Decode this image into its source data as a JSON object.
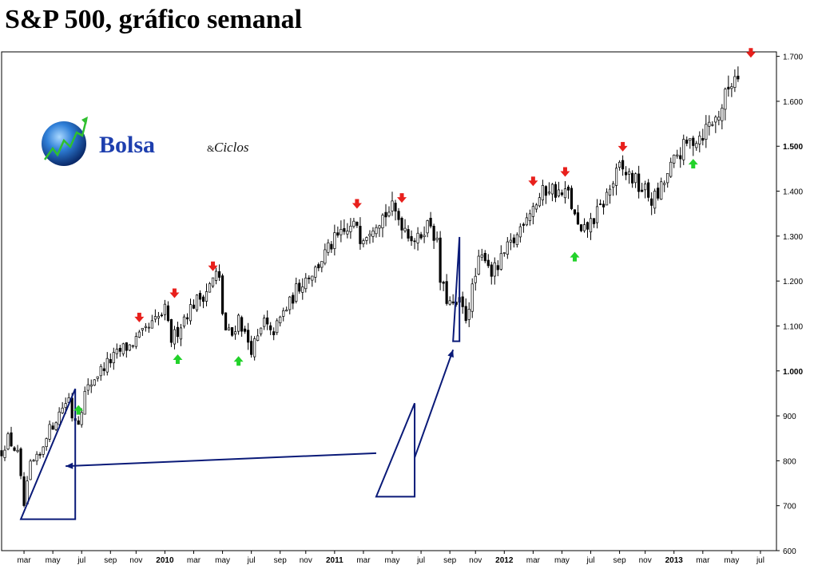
{
  "title": "S&P 500, gráfico semanal",
  "logo": {
    "word1": "Bolsa",
    "amp": "&",
    "word2": "Ciclos"
  },
  "colors": {
    "up_candle": "#ffffff",
    "down_candle": "#000000",
    "wick": "#000000",
    "arrow_down": "#e8201c",
    "arrow_up": "#22d22a",
    "annotation": "#0a1a78"
  },
  "chart_data": {
    "type": "candlestick",
    "timeframe": "weekly",
    "ylim": [
      600,
      1710
    ],
    "y_ticks": [
      {
        "value": 1700,
        "label": "1.700",
        "bold": false
      },
      {
        "value": 1600,
        "label": "1.600",
        "bold": false
      },
      {
        "value": 1500,
        "label": "1.500",
        "bold": true
      },
      {
        "value": 1400,
        "label": "1.400",
        "bold": false
      },
      {
        "value": 1300,
        "label": "1.300",
        "bold": false
      },
      {
        "value": 1200,
        "label": "1.200",
        "bold": false
      },
      {
        "value": 1100,
        "label": "1.100",
        "bold": false
      },
      {
        "value": 1000,
        "label": "1.000",
        "bold": true
      },
      {
        "value": 900,
        "label": "900",
        "bold": false
      },
      {
        "value": 800,
        "label": "800",
        "bold": false
      },
      {
        "value": 700,
        "label": "700",
        "bold": false
      },
      {
        "value": 600,
        "label": "600",
        "bold": false
      }
    ],
    "x_ticks": [
      {
        "week": 2,
        "label": "mar",
        "bold": false
      },
      {
        "week": 11,
        "label": "may",
        "bold": false
      },
      {
        "week": 20,
        "label": "jul",
        "bold": false
      },
      {
        "week": 29,
        "label": "sep",
        "bold": false
      },
      {
        "week": 37,
        "label": "nov",
        "bold": false
      },
      {
        "week": 46,
        "label": "2010",
        "bold": true
      },
      {
        "week": 55,
        "label": "mar",
        "bold": false
      },
      {
        "week": 64,
        "label": "may",
        "bold": false
      },
      {
        "week": 73,
        "label": "jul",
        "bold": false
      },
      {
        "week": 82,
        "label": "sep",
        "bold": false
      },
      {
        "week": 90,
        "label": "nov",
        "bold": false
      },
      {
        "week": 99,
        "label": "2011",
        "bold": true
      },
      {
        "week": 108,
        "label": "mar",
        "bold": false
      },
      {
        "week": 117,
        "label": "may",
        "bold": false
      },
      {
        "week": 126,
        "label": "jul",
        "bold": false
      },
      {
        "week": 135,
        "label": "sep",
        "bold": false
      },
      {
        "week": 143,
        "label": "nov",
        "bold": false
      },
      {
        "week": 152,
        "label": "2012",
        "bold": true
      },
      {
        "week": 161,
        "label": "mar",
        "bold": false
      },
      {
        "week": 170,
        "label": "may",
        "bold": false
      },
      {
        "week": 179,
        "label": "jul",
        "bold": false
      },
      {
        "week": 188,
        "label": "sep",
        "bold": false
      },
      {
        "week": 196,
        "label": "nov",
        "bold": false
      },
      {
        "week": 205,
        "label": "2013",
        "bold": true
      },
      {
        "week": 214,
        "label": "mar",
        "bold": false
      },
      {
        "week": 223,
        "label": "may",
        "bold": false
      },
      {
        "week": 232,
        "label": "jul",
        "bold": false
      }
    ],
    "week_range": [
      -5,
      237
    ],
    "path_anchors": [
      [
        -5,
        820
      ],
      [
        -3,
        850
      ],
      [
        0,
        815
      ],
      [
        2,
        700
      ],
      [
        4,
        790
      ],
      [
        7,
        810
      ],
      [
        9,
        860
      ],
      [
        11,
        880
      ],
      [
        14,
        920
      ],
      [
        16,
        940
      ],
      [
        17,
        900
      ],
      [
        19,
        890
      ],
      [
        21,
        950
      ],
      [
        24,
        985
      ],
      [
        27,
        1010
      ],
      [
        30,
        1030
      ],
      [
        33,
        1050
      ],
      [
        35,
        1055
      ],
      [
        37,
        1070
      ],
      [
        39,
        1080
      ],
      [
        41,
        1095
      ],
      [
        43,
        1110
      ],
      [
        45,
        1125
      ],
      [
        46,
        1135
      ],
      [
        47,
        1100
      ],
      [
        48,
        1070
      ],
      [
        50,
        1090
      ],
      [
        52,
        1120
      ],
      [
        55,
        1150
      ],
      [
        58,
        1170
      ],
      [
        60,
        1190
      ],
      [
        62,
        1215
      ],
      [
        63,
        1200
      ],
      [
        64,
        1130
      ],
      [
        65,
        1090
      ],
      [
        67,
        1080
      ],
      [
        69,
        1120
      ],
      [
        71,
        1080
      ],
      [
        73,
        1050
      ],
      [
        75,
        1070
      ],
      [
        77,
        1110
      ],
      [
        79,
        1080
      ],
      [
        81,
        1100
      ],
      [
        83,
        1130
      ],
      [
        85,
        1150
      ],
      [
        87,
        1180
      ],
      [
        89,
        1200
      ],
      [
        91,
        1215
      ],
      [
        93,
        1225
      ],
      [
        95,
        1250
      ],
      [
        97,
        1270
      ],
      [
        99,
        1290
      ],
      [
        101,
        1300
      ],
      [
        103,
        1310
      ],
      [
        105,
        1320
      ],
      [
        106,
        1330
      ],
      [
        107,
        1300
      ],
      [
        109,
        1310
      ],
      [
        111,
        1330
      ],
      [
        113,
        1340
      ],
      [
        115,
        1350
      ],
      [
        117,
        1360
      ],
      [
        119,
        1340
      ],
      [
        121,
        1320
      ],
      [
        123,
        1300
      ],
      [
        125,
        1290
      ],
      [
        127,
        1320
      ],
      [
        129,
        1330
      ],
      [
        131,
        1280
      ],
      [
        132,
        1200
      ],
      [
        134,
        1160
      ],
      [
        136,
        1140
      ],
      [
        138,
        1150
      ],
      [
        140,
        1120
      ],
      [
        142,
        1180
      ],
      [
        144,
        1240
      ],
      [
        146,
        1260
      ],
      [
        148,
        1220
      ],
      [
        150,
        1230
      ],
      [
        152,
        1260
      ],
      [
        154,
        1280
      ],
      [
        156,
        1300
      ],
      [
        158,
        1340
      ],
      [
        160,
        1360
      ],
      [
        162,
        1375
      ],
      [
        164,
        1395
      ],
      [
        166,
        1410
      ],
      [
        168,
        1400
      ],
      [
        170,
        1390
      ],
      [
        172,
        1395
      ],
      [
        174,
        1340
      ],
      [
        176,
        1300
      ],
      [
        178,
        1320
      ],
      [
        180,
        1340
      ],
      [
        182,
        1360
      ],
      [
        184,
        1390
      ],
      [
        186,
        1420
      ],
      [
        188,
        1450
      ],
      [
        190,
        1440
      ],
      [
        192,
        1430
      ],
      [
        194,
        1410
      ],
      [
        196,
        1400
      ],
      [
        198,
        1380
      ],
      [
        200,
        1390
      ],
      [
        202,
        1420
      ],
      [
        204,
        1450
      ],
      [
        206,
        1480
      ],
      [
        208,
        1495
      ],
      [
        210,
        1510
      ],
      [
        212,
        1520
      ],
      [
        214,
        1530
      ],
      [
        216,
        1550
      ],
      [
        218,
        1560
      ],
      [
        220,
        1590
      ],
      [
        222,
        1630
      ],
      [
        224,
        1660
      ],
      [
        225,
        1665
      ]
    ],
    "arrows_down": [
      {
        "week": 38,
        "value": 1117
      },
      {
        "week": 49,
        "value": 1171
      },
      {
        "week": 61,
        "value": 1231
      },
      {
        "week": 106,
        "value": 1370
      },
      {
        "week": 120,
        "value": 1383
      },
      {
        "week": 161,
        "value": 1420
      },
      {
        "week": 171,
        "value": 1441
      },
      {
        "week": 189,
        "value": 1497
      },
      {
        "week": 229,
        "value": 1706
      }
    ],
    "arrows_up": [
      {
        "week": 19,
        "value": 915
      },
      {
        "week": 50,
        "value": 1028
      },
      {
        "week": 69,
        "value": 1024
      },
      {
        "week": 174,
        "value": 1256
      },
      {
        "week": 211,
        "value": 1463
      }
    ],
    "triangles": [
      {
        "points": [
          [
            1,
            670
          ],
          [
            18,
            960
          ],
          [
            18,
            670
          ]
        ]
      },
      {
        "points": [
          [
            136,
            1066
          ],
          [
            138,
            1298
          ],
          [
            138,
            1066
          ]
        ]
      },
      {
        "points": [
          [
            112,
            720
          ],
          [
            124,
            928
          ],
          [
            124,
            720
          ]
        ]
      }
    ],
    "pointer_arrows": [
      {
        "from": [
          112,
          817
        ],
        "to": [
          15,
          788
        ]
      },
      {
        "from": [
          124,
          807
        ],
        "to": [
          136,
          1047
        ]
      }
    ]
  }
}
